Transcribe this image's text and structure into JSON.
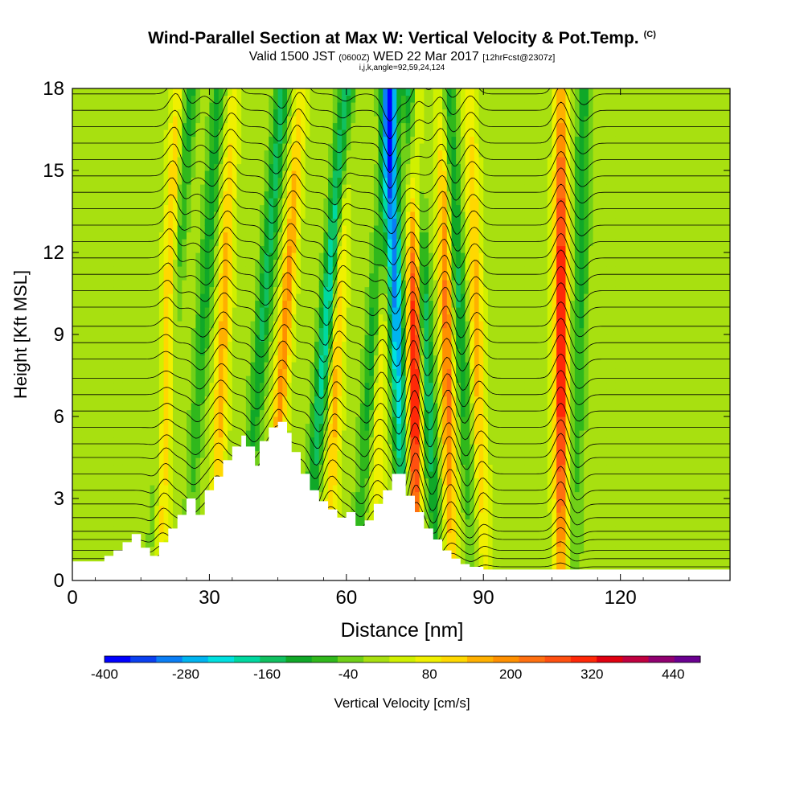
{
  "header": {
    "title": "Wind-Parallel Section at Max W: Vertical Velocity & Pot.Temp.",
    "title_mark": "(C)",
    "valid_prefix": "Valid 1500 JST",
    "valid_utc": "(0600Z)",
    "valid_date": "WED 22 Mar 2017",
    "forecast": "[12hrFcst@2307z]",
    "indices": "i,j,k,angle=92,59,24,124"
  },
  "chart_data": {
    "type": "heatmap",
    "xlabel": "Distance [nm]",
    "ylabel": "Height [Kft MSL]",
    "xlim": [
      0,
      144
    ],
    "ylim": [
      0,
      18
    ],
    "x_ticks": [
      0,
      30,
      60,
      90,
      120
    ],
    "y_ticks": [
      0,
      3,
      6,
      9,
      12,
      15,
      18
    ],
    "x_tick_labels": [
      "0",
      "30",
      "60",
      "90",
      "120"
    ],
    "y_tick_labels": [
      "0",
      "3",
      "6",
      "9",
      "12",
      "15",
      "18"
    ],
    "colorbar": {
      "label": "Vertical Velocity [cm/s]",
      "tick_values": [
        -400,
        -280,
        -160,
        -40,
        80,
        200,
        320,
        440
      ],
      "tick_labels": [
        "-400",
        "-280",
        "-160",
        "-40",
        "80",
        "200",
        "320",
        "440"
      ],
      "bins": [
        -400,
        -360,
        -320,
        -280,
        -240,
        -200,
        -160,
        -120,
        -80,
        -40,
        0,
        40,
        80,
        120,
        160,
        200,
        240,
        280,
        320,
        360,
        400,
        440,
        480
      ],
      "colors": [
        "#0000ff",
        "#0a40f0",
        "#0a7ef5",
        "#00b4f0",
        "#00e0e0",
        "#00d8a0",
        "#10c060",
        "#10a828",
        "#30b81c",
        "#70d018",
        "#a8e010",
        "#d0f000",
        "#f0f000",
        "#ffd800",
        "#ffb000",
        "#ff9000",
        "#ff7010",
        "#ff5010",
        "#ff2808",
        "#e00010",
        "#c00040",
        "#900070",
        "#6a0090"
      ]
    },
    "terrain_kft": [
      [
        0,
        0.7
      ],
      [
        5,
        0.7
      ],
      [
        7,
        0.9
      ],
      [
        9,
        1.1
      ],
      [
        11,
        1.4
      ],
      [
        13,
        1.7
      ],
      [
        15,
        1.2
      ],
      [
        17,
        0.9
      ],
      [
        19,
        1.4
      ],
      [
        21,
        1.9
      ],
      [
        23,
        2.4
      ],
      [
        25,
        3.0
      ],
      [
        27,
        2.4
      ],
      [
        29,
        3.3
      ],
      [
        31,
        3.8
      ],
      [
        33,
        4.4
      ],
      [
        35,
        4.9
      ],
      [
        37,
        5.3
      ],
      [
        38,
        4.9
      ],
      [
        40,
        4.2
      ],
      [
        41,
        5.1
      ],
      [
        43,
        5.6
      ],
      [
        45,
        5.8
      ],
      [
        47,
        5.4
      ],
      [
        48,
        4.7
      ],
      [
        50,
        3.9
      ],
      [
        52,
        3.3
      ],
      [
        54,
        2.9
      ],
      [
        56,
        2.6
      ],
      [
        58,
        2.3
      ],
      [
        60,
        2.5
      ],
      [
        62,
        2.0
      ],
      [
        64,
        2.2
      ],
      [
        66,
        2.8
      ],
      [
        68,
        3.3
      ],
      [
        70,
        3.9
      ],
      [
        72,
        3.9
      ],
      [
        73,
        3.1
      ],
      [
        75,
        2.5
      ],
      [
        77,
        1.9
      ],
      [
        79,
        1.5
      ],
      [
        81,
        1.1
      ],
      [
        83,
        0.8
      ],
      [
        85,
        0.6
      ],
      [
        87,
        0.5
      ],
      [
        90,
        0.4
      ],
      [
        144,
        0.4
      ]
    ],
    "theta_contours_kft": [
      0.2,
      0.5,
      0.8,
      1.1,
      1.5,
      1.8,
      2.3,
      2.8,
      3.3,
      3.9,
      4.5,
      5.0,
      5.6,
      6.2,
      6.8,
      7.4,
      8.1,
      8.7,
      9.3,
      10.0,
      10.6,
      11.2,
      11.8,
      12.4,
      13.0,
      13.6,
      14.2,
      14.8,
      15.4,
      16.0,
      16.6,
      17.2,
      17.8
    ],
    "updraft_bands": [
      {
        "x_base": 19,
        "tilt_nm": 4,
        "peak_w": 200
      },
      {
        "x_base": 31,
        "tilt_nm": 4,
        "peak_w": 160
      },
      {
        "x_base": 43,
        "tilt_nm": 7,
        "peak_w": 200
      },
      {
        "x_base": 56,
        "tilt_nm": 4,
        "peak_w": 160
      },
      {
        "x_base": 66,
        "tilt_nm": 3,
        "peak_w": 120
      },
      {
        "x_base": 75,
        "tilt_nm": 0,
        "peak_w": 400
      },
      {
        "x_base": 83,
        "tilt_nm": -2,
        "peak_w": 240
      },
      {
        "x_base": 90,
        "tilt_nm": -3,
        "peak_w": 160
      },
      {
        "x_base": 107,
        "tilt_nm": 0,
        "peak_w": 360
      }
    ],
    "downdraft_bands": [
      {
        "x_base": 17,
        "tilt_nm": 9,
        "peak_w": -120
      },
      {
        "x_base": 25,
        "tilt_nm": 7,
        "peak_w": -120
      },
      {
        "x_base": 37,
        "tilt_nm": 9,
        "peak_w": -160
      },
      {
        "x_base": 51,
        "tilt_nm": 9,
        "peak_w": -240
      },
      {
        "x_base": 62,
        "tilt_nm": 8,
        "peak_w": -160
      },
      {
        "x_base": 73,
        "tilt_nm": -4,
        "peak_w": -320
      },
      {
        "x_base": 80,
        "tilt_nm": -6,
        "peak_w": -240
      },
      {
        "x_base": 88,
        "tilt_nm": -6,
        "peak_w": -160
      },
      {
        "x_base": 110,
        "tilt_nm": 2,
        "peak_w": -120
      }
    ]
  }
}
